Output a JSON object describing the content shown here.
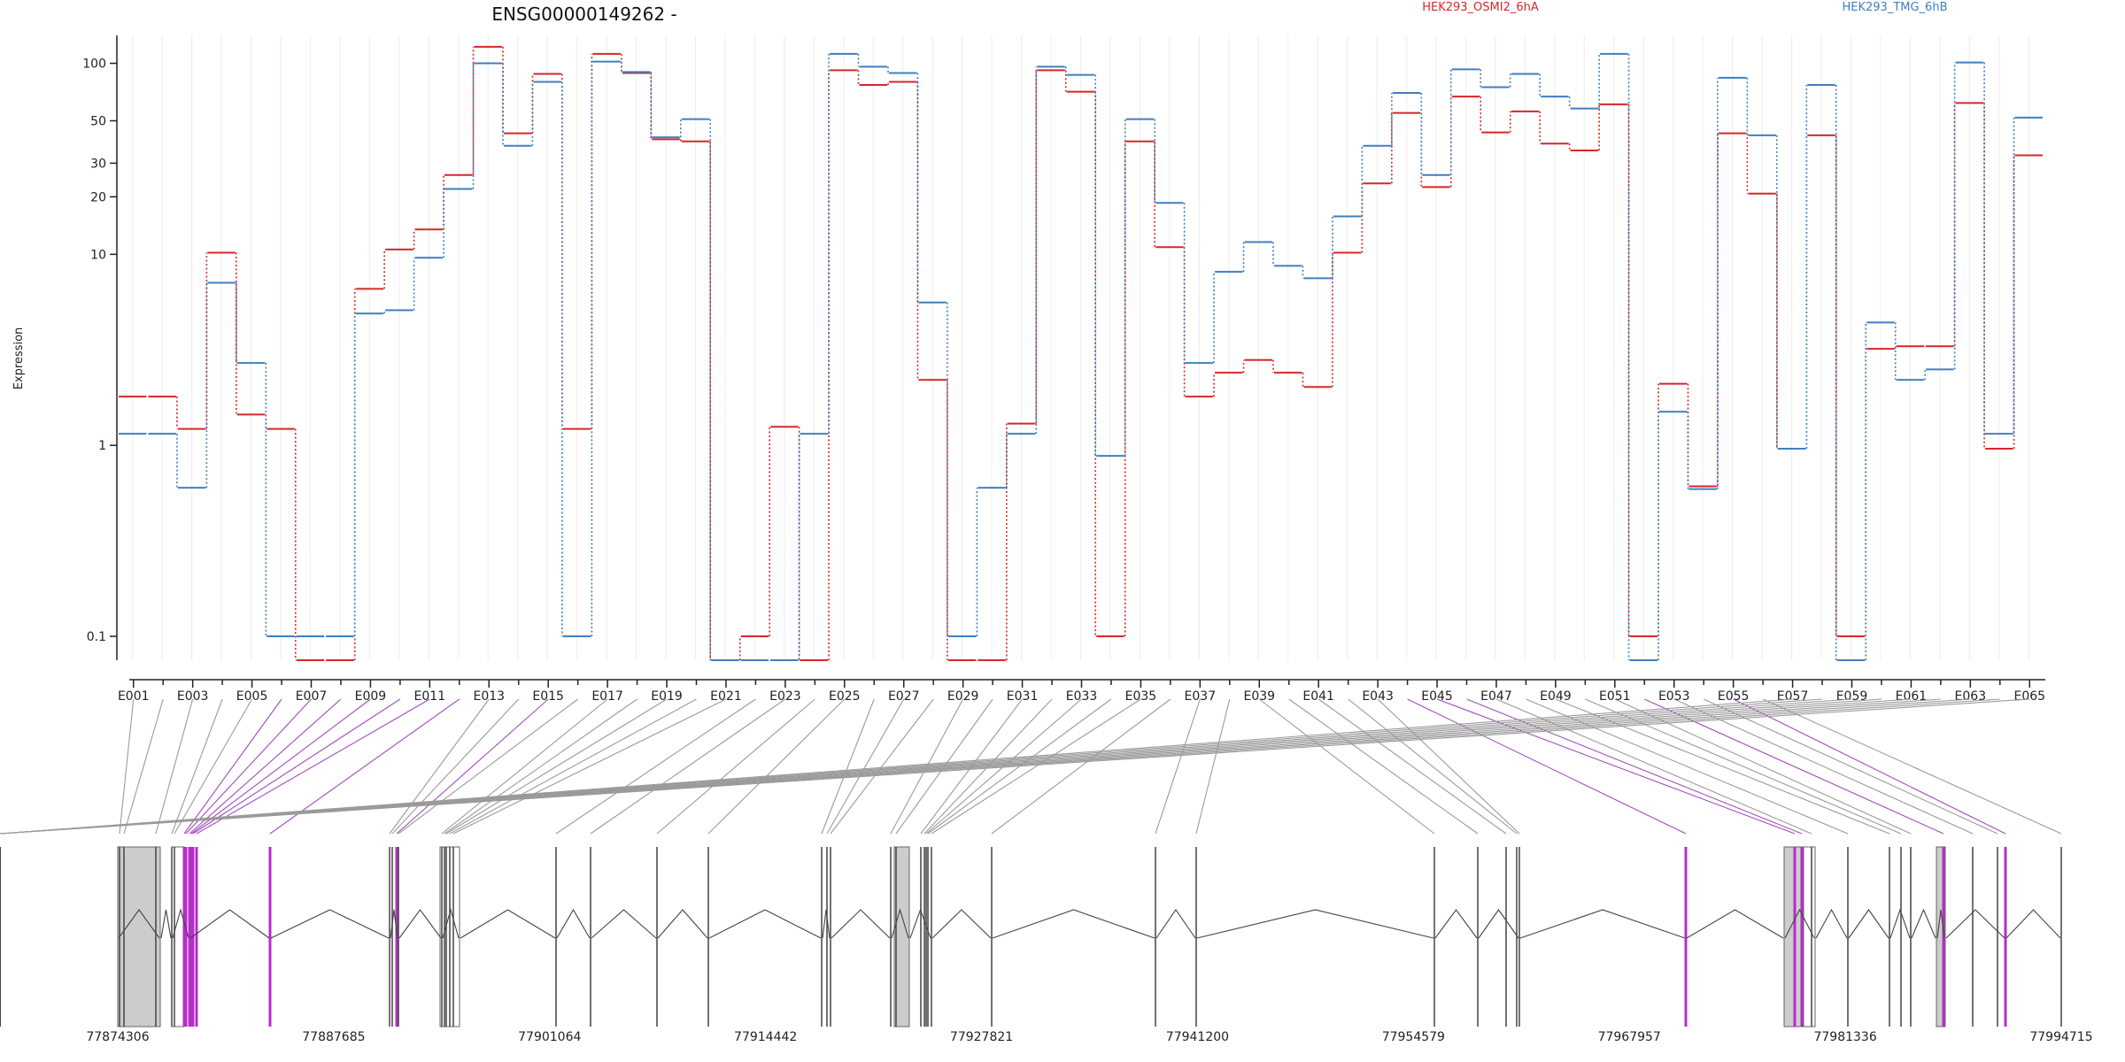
{
  "chart_data": {
    "type": "line",
    "title": "ENSG00000149262 -",
    "ylabel": "Expression",
    "yscale": "log",
    "ylim": [
      0.075,
      140
    ],
    "yticks": [
      0.1,
      1,
      10,
      20,
      30,
      50,
      100
    ],
    "ytick_labels": [
      "0.1",
      "1",
      "10",
      "20",
      "30",
      "50",
      "100"
    ],
    "categories": [
      "E001",
      "E002",
      "E003",
      "E004",
      "E005",
      "E006",
      "E007",
      "E008",
      "E009",
      "E010",
      "E011",
      "E012",
      "E013",
      "E014",
      "E015",
      "E016",
      "E017",
      "E018",
      "E019",
      "E020",
      "E021",
      "E022",
      "E023",
      "E024",
      "E025",
      "E026",
      "E027",
      "E028",
      "E029",
      "E030",
      "E031",
      "E032",
      "E033",
      "E034",
      "E035",
      "E036",
      "E037",
      "E038",
      "E039",
      "E040",
      "E041",
      "E042",
      "E043",
      "E044",
      "E045",
      "E046",
      "E047",
      "E048",
      "E049",
      "E050",
      "E051",
      "E052",
      "E053",
      "E054",
      "E055",
      "E056",
      "E057",
      "E058",
      "E059",
      "E060",
      "E061",
      "E062",
      "E063",
      "E064",
      "E065"
    ],
    "labeled_categories": [
      "E001",
      "E003",
      "E005",
      "E007",
      "E009",
      "E011",
      "E013",
      "E015",
      "E017",
      "E019",
      "E021",
      "E023",
      "E025",
      "E027",
      "E029",
      "E031",
      "E033",
      "E035",
      "E037",
      "E039",
      "E041",
      "E043",
      "E045",
      "E047",
      "E049",
      "E051",
      "E053",
      "E055",
      "E057",
      "E059",
      "E061",
      "E063",
      "E065"
    ],
    "series": [
      {
        "name": "HEK293_OSMI2_6hA",
        "color": "#d62728",
        "style": "dotted-step",
        "values": [
          1.8,
          1.8,
          1.22,
          10.2,
          1.45,
          1.22,
          0.075,
          0.075,
          6.6,
          10.6,
          13.5,
          26,
          122,
          43,
          88,
          1.22,
          112,
          89,
          40,
          39,
          0.075,
          0.1,
          1.25,
          0.075,
          92,
          77,
          80,
          2.2,
          0.075,
          0.075,
          1.3,
          92,
          71,
          0.1,
          39,
          10.9,
          1.8,
          2.4,
          2.8,
          2.4,
          2.02,
          10.2,
          23.5,
          55,
          22.5,
          67,
          43.5,
          56,
          38,
          35,
          61,
          0.1,
          2.1,
          0.61,
          43,
          20.8,
          0.96,
          42,
          0.1,
          3.2,
          3.3,
          3.3,
          62,
          0.96,
          33
        ]
      },
      {
        "name": "HEK293_TMG_6hB",
        "color": "#3f7fbf",
        "style": "dotted-step",
        "values": [
          1.15,
          1.15,
          0.6,
          7.1,
          2.7,
          0.1,
          0.1,
          0.1,
          4.9,
          5.1,
          9.6,
          22,
          100,
          37,
          80,
          0.1,
          102,
          90,
          41,
          51,
          0.075,
          0.075,
          0.075,
          1.15,
          112,
          96,
          89,
          5.6,
          0.1,
          0.6,
          1.15,
          96,
          87,
          0.88,
          51,
          18.6,
          2.7,
          8.1,
          11.6,
          8.7,
          7.5,
          15.8,
          37,
          70,
          26,
          93,
          75,
          88,
          67,
          58,
          112,
          0.075,
          1.5,
          0.59,
          84,
          42,
          0.96,
          77,
          0.075,
          4.4,
          2.2,
          2.5,
          101,
          1.15,
          52
        ]
      }
    ],
    "legend": {
      "placement": "top-right"
    },
    "gene_model": {
      "coordinate_labels": [
        "77874306",
        "77887685",
        "77901064",
        "77914442",
        "77927821",
        "77941200",
        "77954579",
        "77967957",
        "77981336",
        "77994715"
      ]
    }
  }
}
